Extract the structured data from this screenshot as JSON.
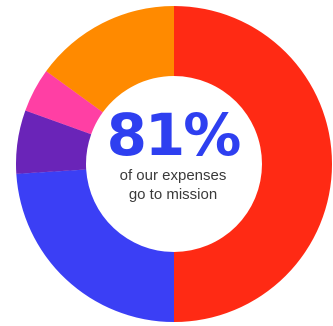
{
  "center": {
    "value": "81%",
    "caption_line1": "of our expenses",
    "caption_line2": "go to mission"
  },
  "colors": {
    "highlight": "#2e3ff0",
    "caption": "#3a3a3a",
    "background": "#ffffff"
  },
  "chart_data": {
    "type": "pie",
    "variant": "donut",
    "title": "",
    "slices": [
      {
        "value": 50,
        "color": "#ff2a14"
      },
      {
        "value": 24,
        "color": "#3b3ff5"
      },
      {
        "value": 6.5,
        "color": "#6a24b8"
      },
      {
        "value": 4.5,
        "color": "#ff3fa4"
      },
      {
        "value": 15,
        "color": "#ff8a00"
      }
    ],
    "start": "top",
    "direction": "clockwise"
  }
}
